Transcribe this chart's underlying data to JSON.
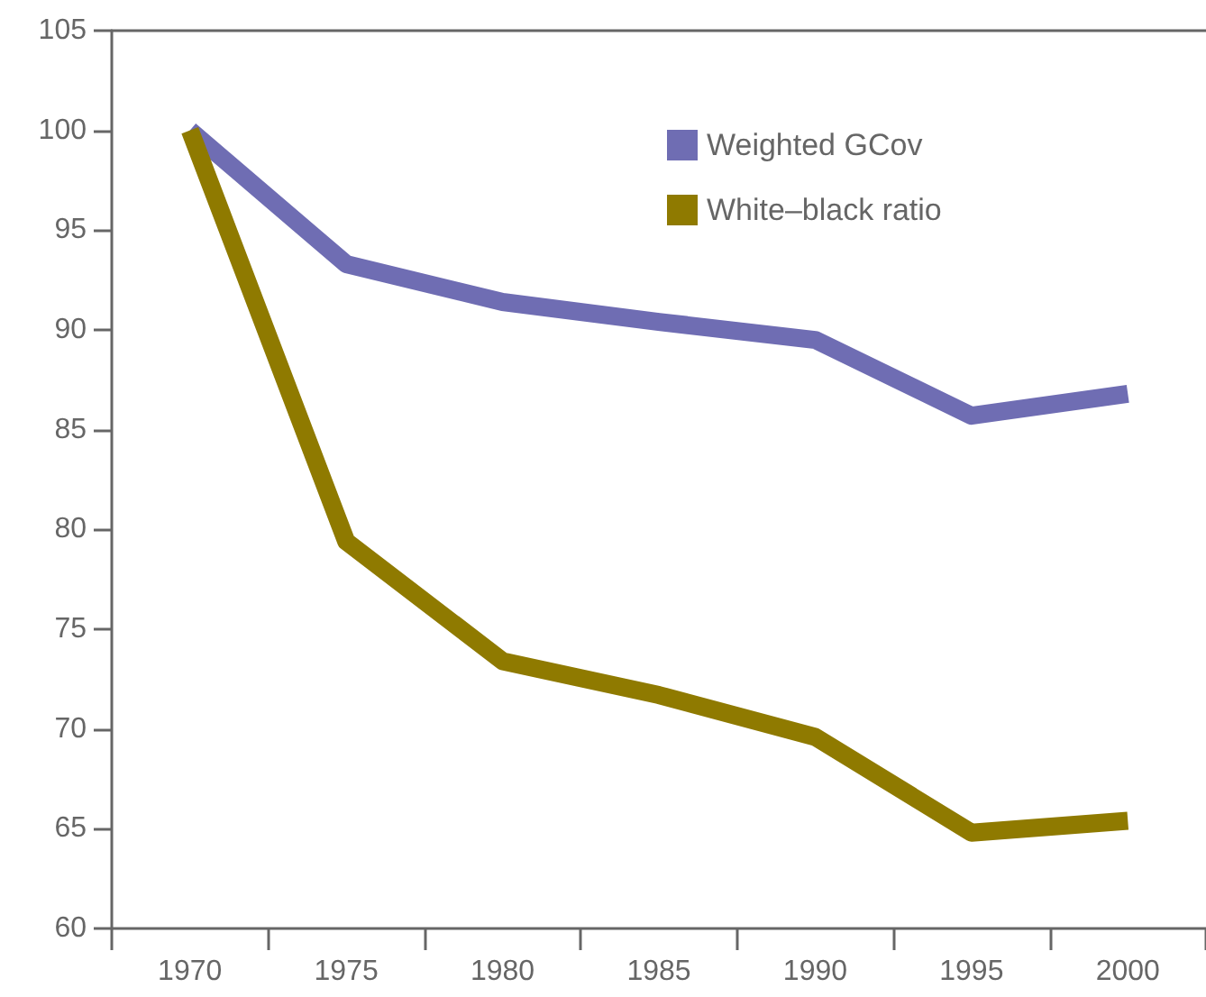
{
  "chart_data": {
    "type": "line",
    "categories": [
      "1970",
      "1975",
      "1980",
      "1985",
      "1990",
      "1995",
      "2000"
    ],
    "series": [
      {
        "name": "Weighted GCov",
        "color": "#6f6db3",
        "values": [
          100,
          93.3,
          91.4,
          90.4,
          89.5,
          85.7,
          86.8
        ]
      },
      {
        "name": "White–black ratio",
        "color": "#8f7a00",
        "values": [
          100,
          79.4,
          73.4,
          71.7,
          69.6,
          64.8,
          65.4
        ]
      }
    ],
    "ylim": [
      60,
      105
    ],
    "yticks": [
      60,
      65,
      70,
      75,
      80,
      85,
      90,
      95,
      100,
      105
    ],
    "grid": false,
    "legend": "top right",
    "marker": "none",
    "line_style": "solid"
  }
}
